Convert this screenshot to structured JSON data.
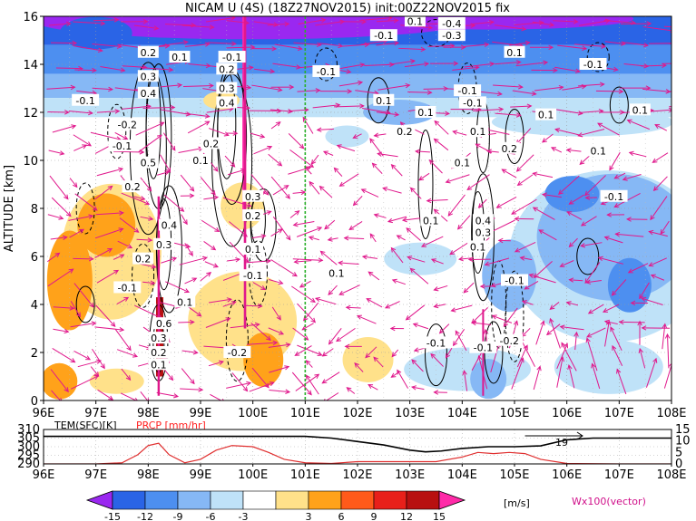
{
  "chart_data": [
    {
      "type": "heatmap",
      "title": "NICAM U (4S) (18Z27NOV2015) init:00Z22NOV2015 fix",
      "xlabel": "",
      "ylabel": "ALTITUDE [km]",
      "x_ticks": [
        "96E",
        "97E",
        "98E",
        "99E",
        "100E",
        "101E",
        "102E",
        "103E",
        "104E",
        "105E",
        "106E",
        "107E",
        "108E"
      ],
      "y_ticks": [
        "0",
        "2",
        "4",
        "6",
        "8",
        "10",
        "12",
        "14",
        "16"
      ],
      "xlim": [
        96,
        108
      ],
      "ylim": [
        0,
        16
      ],
      "grid": true,
      "vertical_line_x": 101,
      "contour_labels": [
        {
          "x": 96.8,
          "y": 12.5,
          "t": "-0.1"
        },
        {
          "x": 97.6,
          "y": 11.5,
          "t": "-0.2"
        },
        {
          "x": 97.5,
          "y": 10.6,
          "t": "-0.1"
        },
        {
          "x": 98.0,
          "y": 14.5,
          "t": "0.2"
        },
        {
          "x": 98.6,
          "y": 14.3,
          "t": "0.1"
        },
        {
          "x": 98.0,
          "y": 13.5,
          "t": "0.3"
        },
        {
          "x": 98.0,
          "y": 12.8,
          "t": "0.4"
        },
        {
          "x": 98.0,
          "y": 9.9,
          "t": "0.5"
        },
        {
          "x": 97.7,
          "y": 8.9,
          "t": "0.2"
        },
        {
          "x": 99.6,
          "y": 14.3,
          "t": "-0.1"
        },
        {
          "x": 99.5,
          "y": 13.8,
          "t": "0.2"
        },
        {
          "x": 99.5,
          "y": 13.0,
          "t": "0.3"
        },
        {
          "x": 99.5,
          "y": 12.4,
          "t": "0.4"
        },
        {
          "x": 99.2,
          "y": 10.7,
          "t": "0.2"
        },
        {
          "x": 99.0,
          "y": 10.0,
          "t": "0.1"
        },
        {
          "x": 100.0,
          "y": 8.5,
          "t": "0.3"
        },
        {
          "x": 100.0,
          "y": 7.7,
          "t": "0.2"
        },
        {
          "x": 100.0,
          "y": 6.3,
          "t": "0.1"
        },
        {
          "x": 100.0,
          "y": 5.2,
          "t": "-0.1"
        },
        {
          "x": 97.9,
          "y": 5.9,
          "t": "0.2"
        },
        {
          "x": 98.3,
          "y": 6.5,
          "t": "0.3"
        },
        {
          "x": 98.4,
          "y": 7.3,
          "t": "0.4"
        },
        {
          "x": 97.6,
          "y": 4.7,
          "t": "-0.1"
        },
        {
          "x": 98.7,
          "y": 4.1,
          "t": "0.1"
        },
        {
          "x": 98.3,
          "y": 3.2,
          "t": "0.6"
        },
        {
          "x": 98.2,
          "y": 2.6,
          "t": "0.3"
        },
        {
          "x": 98.2,
          "y": 2.0,
          "t": "0.2"
        },
        {
          "x": 98.2,
          "y": 1.5,
          "t": "0.1"
        },
        {
          "x": 99.7,
          "y": 2.0,
          "t": "-0.2"
        },
        {
          "x": 101.4,
          "y": 13.7,
          "t": "-0.1"
        },
        {
          "x": 102.5,
          "y": 15.2,
          "t": "-0.1"
        },
        {
          "x": 103.1,
          "y": 15.8,
          "t": "0.1"
        },
        {
          "x": 103.8,
          "y": 15.7,
          "t": "-0.4"
        },
        {
          "x": 103.8,
          "y": 15.2,
          "t": "-0.3"
        },
        {
          "x": 102.5,
          "y": 12.5,
          "t": "0.1"
        },
        {
          "x": 103.3,
          "y": 12.0,
          "t": "0.1"
        },
        {
          "x": 102.9,
          "y": 11.2,
          "t": "0.2"
        },
        {
          "x": 104.1,
          "y": 12.9,
          "t": "-0.1"
        },
        {
          "x": 104.2,
          "y": 12.4,
          "t": "-0.1"
        },
        {
          "x": 104.3,
          "y": 11.2,
          "t": "0.1"
        },
        {
          "x": 104.0,
          "y": 9.9,
          "t": "0.1"
        },
        {
          "x": 104.9,
          "y": 10.5,
          "t": "0.2"
        },
        {
          "x": 105.0,
          "y": 14.5,
          "t": "0.1"
        },
        {
          "x": 105.6,
          "y": 11.9,
          "t": "0.1"
        },
        {
          "x": 106.5,
          "y": 14.0,
          "t": "-0.1"
        },
        {
          "x": 107.4,
          "y": 12.1,
          "t": "0.1"
        },
        {
          "x": 106.6,
          "y": 10.4,
          "t": "0.1"
        },
        {
          "x": 106.9,
          "y": 8.5,
          "t": "-0.1"
        },
        {
          "x": 103.4,
          "y": 7.5,
          "t": "0.1"
        },
        {
          "x": 104.4,
          "y": 7.5,
          "t": "0.4"
        },
        {
          "x": 104.4,
          "y": 7.0,
          "t": "0.3"
        },
        {
          "x": 104.3,
          "y": 6.4,
          "t": "0.1"
        },
        {
          "x": 101.6,
          "y": 5.3,
          "t": "0.1"
        },
        {
          "x": 105.0,
          "y": 5.0,
          "t": "-0.1"
        },
        {
          "x": 103.5,
          "y": 2.4,
          "t": "-0.1"
        },
        {
          "x": 104.4,
          "y": 2.2,
          "t": "-0.1"
        },
        {
          "x": 104.9,
          "y": 2.5,
          "t": "-0.2"
        }
      ]
    },
    {
      "type": "line",
      "title": "",
      "left_label": "TEM(SFC)[K]",
      "right_label": "PRCP [mm/hr]",
      "left_ticks": [
        "290",
        "295",
        "300",
        "305",
        "310"
      ],
      "right_ticks": [
        "0",
        "5",
        "10",
        "15"
      ],
      "x_ticks": [
        "96E",
        "97E",
        "98E",
        "99E",
        "100E",
        "101E",
        "102E",
        "103E",
        "104E",
        "105E",
        "106E",
        "107E",
        "108E"
      ],
      "series": [
        {
          "name": "TEM(SFC)[K]",
          "x": [
            96,
            96.5,
            97,
            97.5,
            98,
            98.5,
            99,
            99.5,
            100,
            100.5,
            101,
            101.5,
            102,
            102.5,
            103,
            103.3,
            103.6,
            104,
            104.5,
            105,
            105.5,
            106,
            106.5,
            107,
            107.5,
            108
          ],
          "y": [
            306,
            306,
            306,
            306,
            306,
            306,
            306,
            306,
            306,
            306,
            306,
            305,
            303,
            301,
            298,
            297,
            297.5,
            299,
            300,
            300,
            300.5,
            304,
            305,
            305,
            305,
            305
          ]
        },
        {
          "name": "PRCP [mm/hr]",
          "x": [
            96,
            96.5,
            97,
            97.5,
            97.8,
            98,
            98.2,
            98.4,
            98.7,
            99,
            99.3,
            99.6,
            100,
            100.3,
            100.6,
            101,
            101.5,
            102,
            102.5,
            103,
            103.5,
            104,
            104.3,
            104.6,
            104.9,
            105.2,
            105.5,
            106,
            107,
            108
          ],
          "y": [
            0,
            0,
            0,
            0.5,
            4,
            8,
            9,
            4,
            0.5,
            2,
            6,
            8,
            7.5,
            5,
            2,
            0.5,
            0.2,
            1,
            1,
            1,
            1,
            3,
            5,
            4.5,
            5,
            4.5,
            2,
            0.2,
            0,
            0
          ]
        }
      ],
      "annotation": "19"
    }
  ],
  "colorbar": {
    "ticks": [
      "-15",
      "-12",
      "-9",
      "-6",
      "-3",
      "3",
      "6",
      "9",
      "12",
      "15"
    ],
    "unit": "[m/s]",
    "colors": [
      "#9a28f0",
      "#2a64e6",
      "#4d8ff0",
      "#86b8f5",
      "#bfe2f8",
      "#ffffff",
      "#ffe18a",
      "#ffa21a",
      "#ff5a1a",
      "#e8201a",
      "#b81010",
      "#ff2aa8"
    ]
  },
  "vector_label": "Wx100(vector)",
  "styles": {
    "vector_color": "#e0188c",
    "green_line": "#2ab02a",
    "prcp_color": "#e03030",
    "prcp_label_color": "#ff2020",
    "vector_label_color": "#d0108a"
  }
}
